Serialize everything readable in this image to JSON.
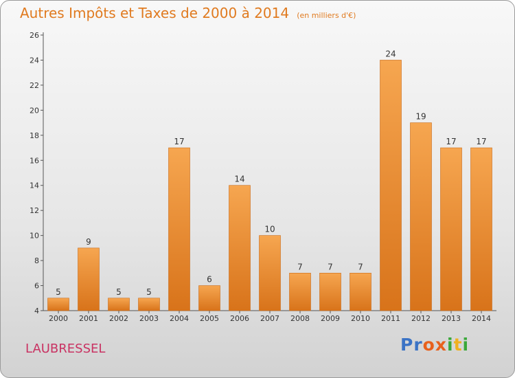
{
  "title": "Autres Impôts et Taxes de 2000 à 2014",
  "subtitle": "(en milliers d'€)",
  "commune": "LAUBRESSEL",
  "logo": {
    "text": "Proxiti",
    "letters": [
      "P",
      "r",
      "o",
      "x",
      "i",
      "t",
      "i"
    ],
    "colors": [
      "#3b73c5",
      "#3b73c5",
      "#e8601c",
      "#e8601c",
      "#3aa83a",
      "#f0b020",
      "#3aa83a"
    ]
  },
  "colors": {
    "bar_top": "#f6a650",
    "bar_bottom": "#d8731a",
    "bar_edge": "#c96a18",
    "title": "#e07a1f",
    "commune": "#c93262"
  },
  "chart_data": {
    "type": "bar",
    "title": "Autres Impôts et Taxes de 2000 à 2014",
    "subtitle": "(en milliers d'€)",
    "xlabel": "",
    "ylabel": "",
    "ylim": [
      4,
      26
    ],
    "yticks": [
      4,
      6,
      8,
      10,
      12,
      14,
      16,
      18,
      20,
      22,
      24,
      26
    ],
    "categories": [
      "2000",
      "2001",
      "2002",
      "2003",
      "2004",
      "2005",
      "2006",
      "2007",
      "2008",
      "2009",
      "2010",
      "2011",
      "2012",
      "2013",
      "2014"
    ],
    "values": [
      5,
      9,
      5,
      5,
      17,
      6,
      14,
      10,
      7,
      7,
      7,
      24,
      19,
      17,
      17
    ],
    "grid": false,
    "legend": "none"
  }
}
